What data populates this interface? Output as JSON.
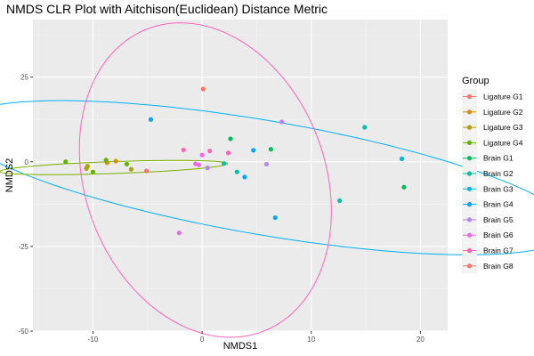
{
  "chart_data": {
    "type": "scatter",
    "title": "NMDS CLR Plot with Aitchison(Euclidean) Distance Metric",
    "xlabel": "NMDS1",
    "ylabel": "NMDS2",
    "xlim": [
      -15.5,
      22.5
    ],
    "ylim": [
      -50,
      42
    ],
    "xticks": [
      -10,
      0,
      10,
      20
    ],
    "xtick_labels": [
      "-10",
      "0",
      "10",
      "20"
    ],
    "yticks": [
      -50,
      -25,
      0,
      25
    ],
    "ytick_labels": [
      "-50",
      "-25",
      "0",
      "25"
    ],
    "grid": true,
    "legend_title": "Group",
    "legend_position": "right",
    "series": [
      {
        "name": "Ligature G1",
        "color": "#F8766D",
        "x": [
          -5.1
        ],
        "y": [
          -2.7
        ]
      },
      {
        "name": "Ligature G2",
        "color": "#DB8E00",
        "x": [
          -8.7,
          -7.9
        ],
        "y": [
          -0.3,
          0.2
        ]
      },
      {
        "name": "Ligature G3",
        "color": "#AEA200",
        "x": [
          -10.6,
          -10.5,
          -6.5
        ],
        "y": [
          -2.0,
          -1.3,
          -2.2
        ]
      },
      {
        "name": "Ligature G4",
        "color": "#64B200",
        "x": [
          -12.5,
          -10.0,
          -8.8,
          -6.9
        ],
        "y": [
          0.0,
          -3.0,
          0.5,
          -0.7
        ]
      },
      {
        "name": "Brain G1",
        "color": "#00BD5C",
        "x": [
          2.6,
          6.3,
          18.5
        ],
        "y": [
          6.8,
          3.7,
          -7.5
        ]
      },
      {
        "name": "Brain G2",
        "color": "#00C1A7",
        "x": [
          2.0,
          3.2,
          12.6,
          14.9
        ],
        "y": [
          -0.5,
          -3.0,
          -11.5,
          10.2
        ]
      },
      {
        "name": "Brain G3",
        "color": "#00BADE",
        "x": [
          18.3
        ],
        "y": [
          0.9
        ]
      },
      {
        "name": "Brain G4",
        "color": "#00A6FF",
        "x": [
          -4.7,
          3.9,
          4.7,
          6.7
        ],
        "y": [
          12.5,
          -4.5,
          3.4,
          -16.5
        ]
      },
      {
        "name": "Brain G5",
        "color": "#B385FF",
        "x": [
          7.3,
          0.5,
          5.9
        ],
        "y": [
          11.8,
          -1.8,
          -0.7
        ]
      },
      {
        "name": "Brain G6",
        "color": "#EF67EB",
        "x": [
          -2.1,
          0.0,
          -0.6,
          -0.3
        ],
        "y": [
          -21.0,
          2.0,
          -0.6,
          -0.9
        ]
      },
      {
        "name": "Brain G7",
        "color": "#FF63B6",
        "x": [
          -1.7,
          0.7,
          2.4
        ],
        "y": [
          3.5,
          3.2,
          2.6
        ]
      },
      {
        "name": "Brain G8",
        "color": "#F8766D",
        "x": [
          0.1
        ],
        "y": [
          21.5
        ]
      }
    ],
    "ellipses": [
      {
        "color": "#00B0F6",
        "cx": 5.7,
        "cy": -4.7,
        "rx": 33.2,
        "ry": 14.5,
        "angle_deg": -36
      },
      {
        "color": "#FF62BC",
        "cx": 0.3,
        "cy": -5.4,
        "rx": 46.5,
        "ry": 11.3,
        "angle_deg": -87
      },
      {
        "color": "#7CAE00",
        "cx": -8.1,
        "cy": -1.7,
        "rx": 10.5,
        "ry": 1.75,
        "angle_deg": 6.5
      }
    ]
  }
}
